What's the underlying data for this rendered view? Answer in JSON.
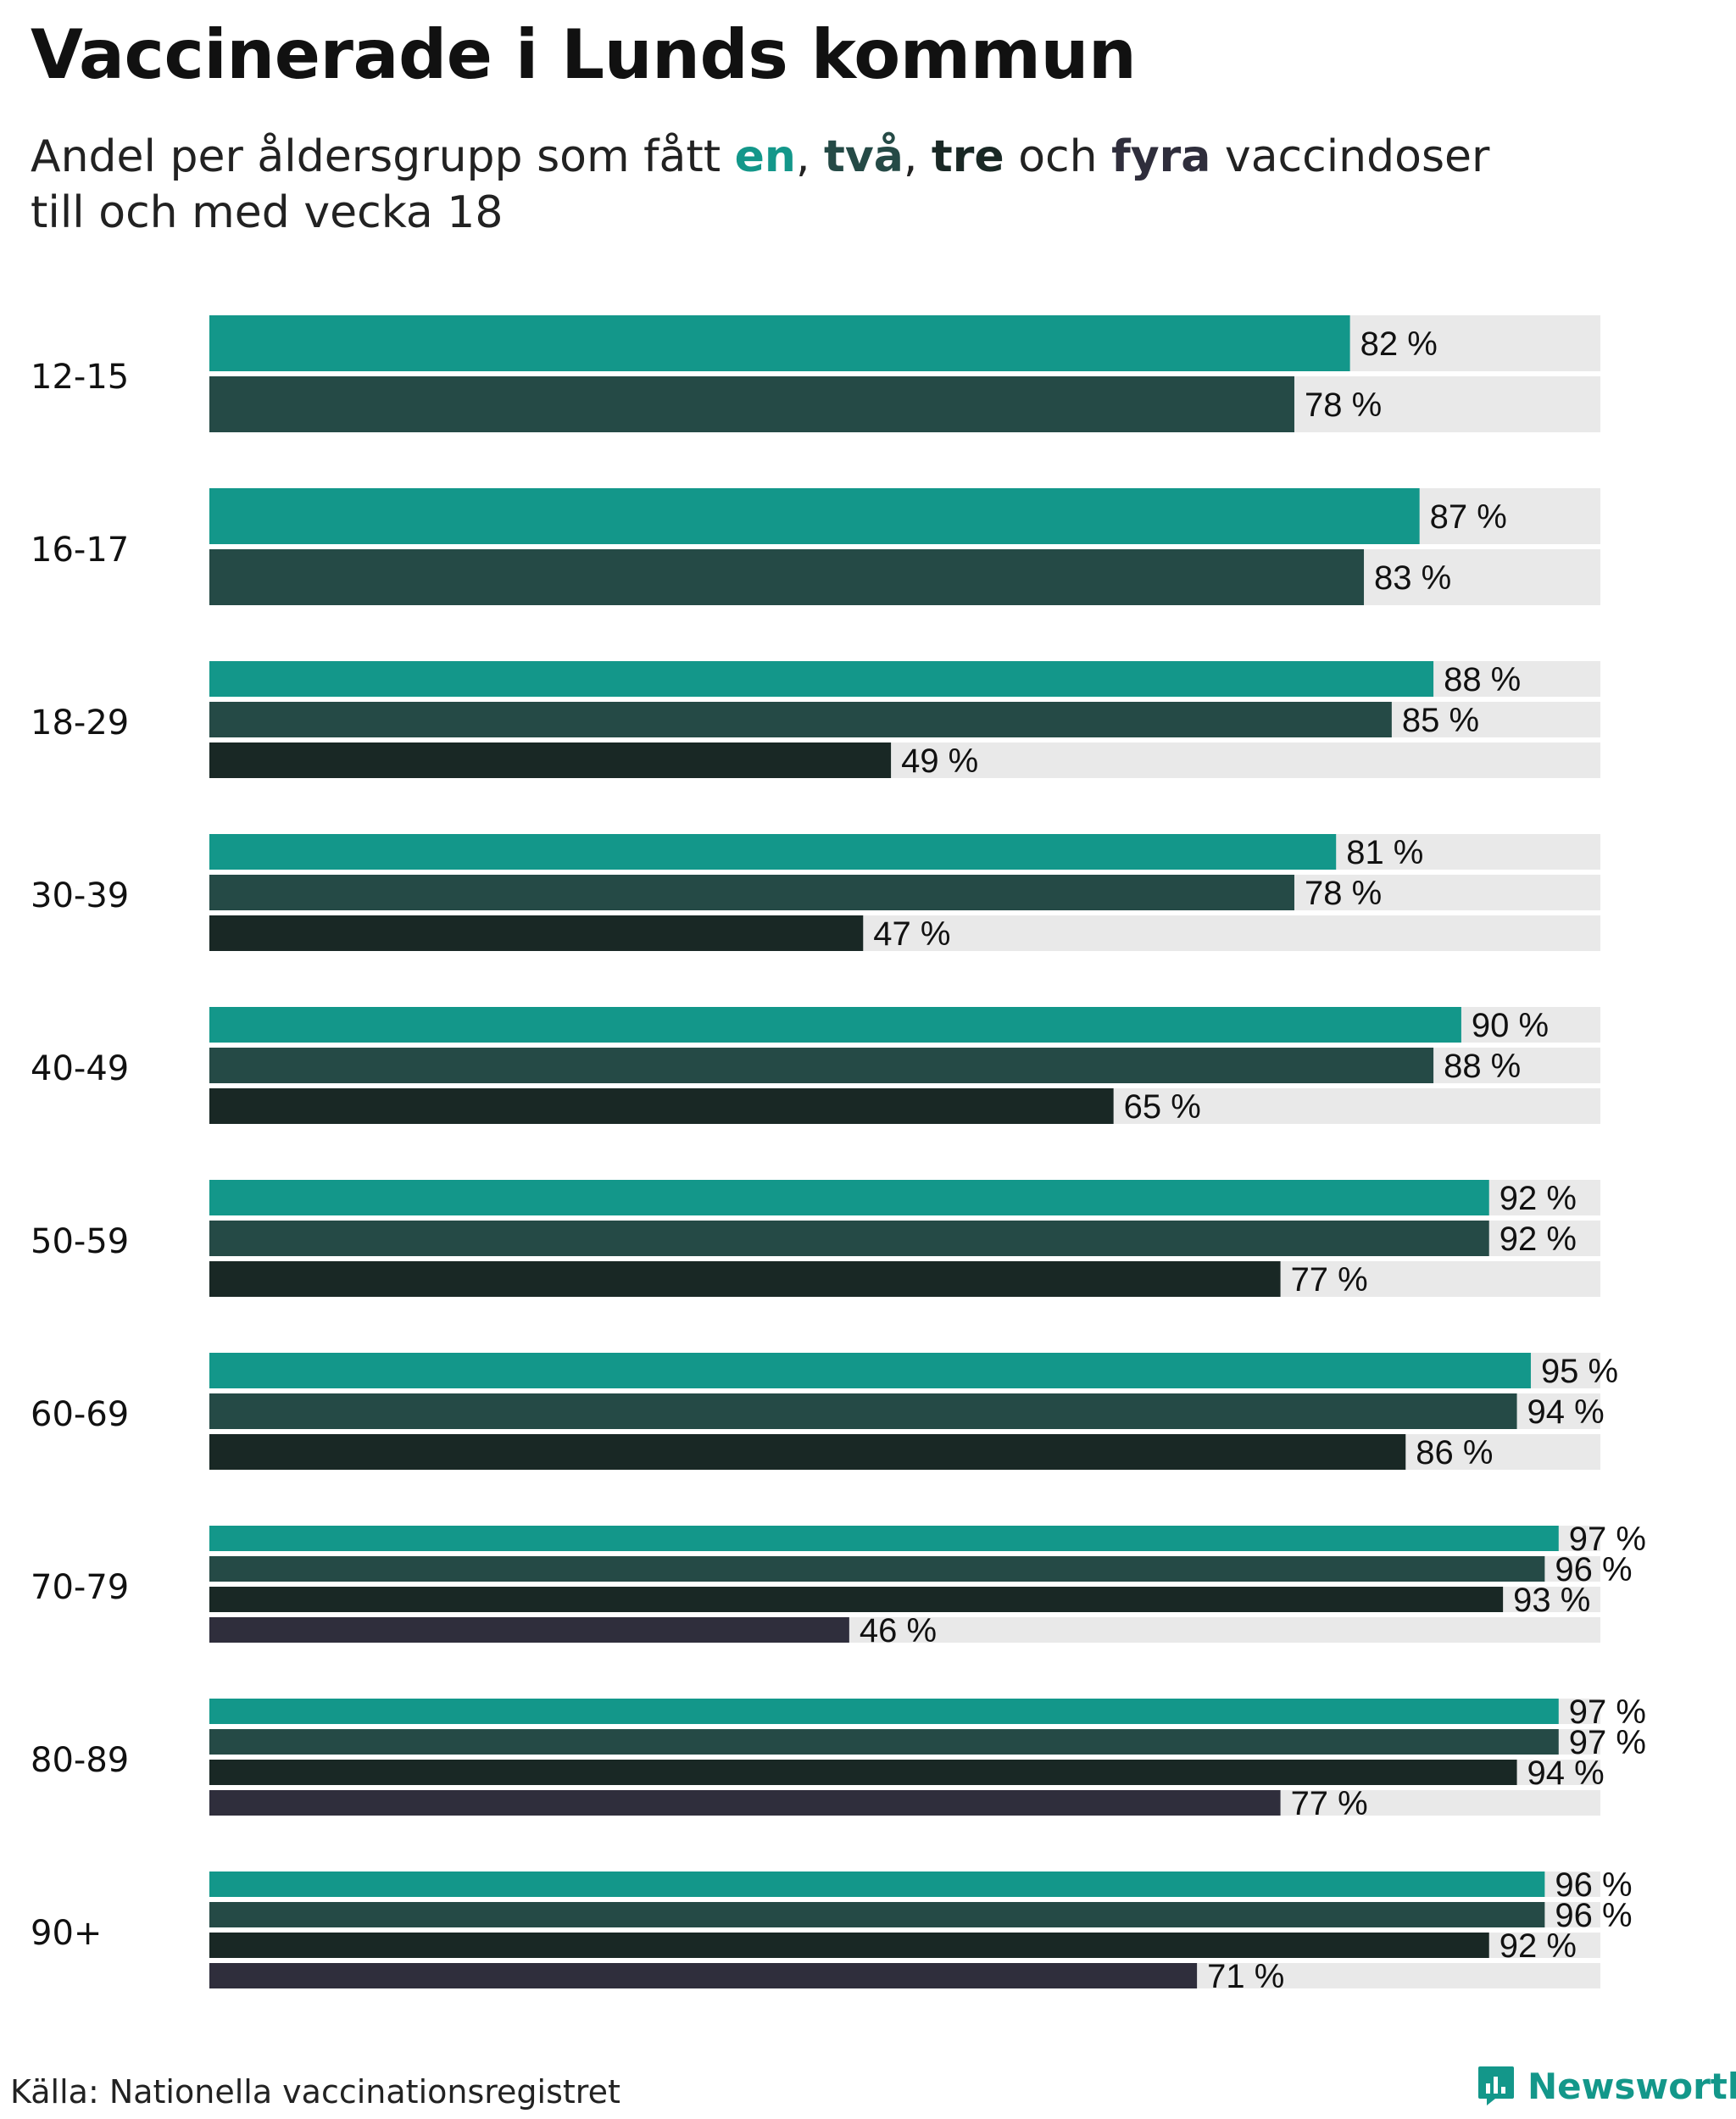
{
  "title": "Vaccinerade i Lunds kommun",
  "subtitle": {
    "prefix": "Andel per åldersgrupp som fått ",
    "dose1": "en",
    "sep1": ", ",
    "dose2": "två",
    "sep2": ", ",
    "dose3": "tre",
    "mid": " och ",
    "dose4": "fyra",
    "suffix": " vaccindoser",
    "line2": "till och med vecka 18"
  },
  "source": "Källa: Nationella vaccinationsregistret",
  "brand": "Newsworthy",
  "colors": {
    "dose1": "#13978a",
    "dose2": "#254a46",
    "dose3": "#192825",
    "dose4": "#2f2e3c",
    "track": "#e9e9e9",
    "brand": "#13978a"
  },
  "chart_data": {
    "type": "bar",
    "orientation": "horizontal",
    "xlim": [
      0,
      100
    ],
    "unit": " %",
    "series_names": [
      "en",
      "två",
      "tre",
      "fyra"
    ],
    "categories": [
      "12-15",
      "16-17",
      "18-29",
      "30-39",
      "40-49",
      "50-59",
      "60-69",
      "70-79",
      "80-89",
      "90+"
    ],
    "groups": [
      {
        "category": "12-15",
        "values": [
          82,
          78
        ]
      },
      {
        "category": "16-17",
        "values": [
          87,
          83
        ]
      },
      {
        "category": "18-29",
        "values": [
          88,
          85,
          49
        ]
      },
      {
        "category": "30-39",
        "values": [
          81,
          78,
          47
        ]
      },
      {
        "category": "40-49",
        "values": [
          90,
          88,
          65
        ]
      },
      {
        "category": "50-59",
        "values": [
          92,
          92,
          77
        ]
      },
      {
        "category": "60-69",
        "values": [
          95,
          94,
          86
        ]
      },
      {
        "category": "70-79",
        "values": [
          97,
          96,
          93,
          46
        ]
      },
      {
        "category": "80-89",
        "values": [
          97,
          97,
          94,
          77
        ]
      },
      {
        "category": "90+",
        "values": [
          96,
          96,
          92,
          71
        ]
      }
    ]
  }
}
